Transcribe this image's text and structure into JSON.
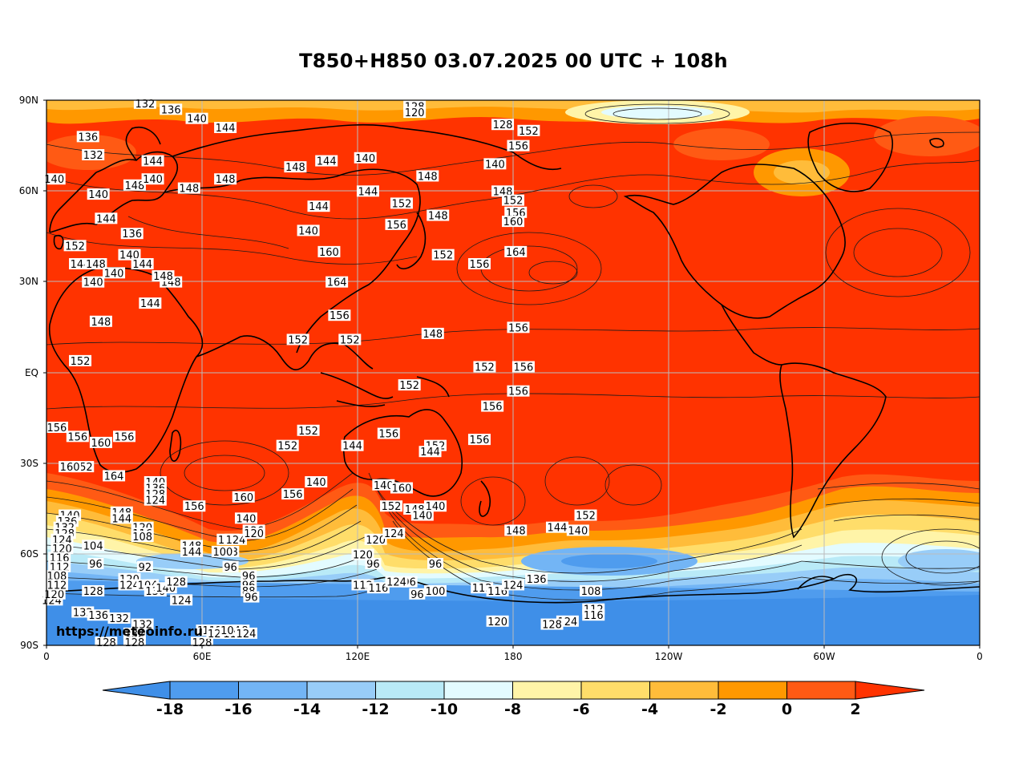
{
  "title": "T850+H850 03.07.2025 00 UTC + 108h",
  "credit": "https://meteoinfo.ru",
  "y_axis_ticks": [
    "90N",
    "60N",
    "30N",
    "EQ",
    "30S",
    "60S",
    "90S"
  ],
  "x_axis_ticks": [
    "0",
    "60E",
    "120E",
    "180",
    "120W",
    "60W",
    "0"
  ],
  "colorbar": {
    "ticks": [
      "-18",
      "-16",
      "-14",
      "-12",
      "-10",
      "-8",
      "-6",
      "-4",
      "-2",
      "0",
      "2"
    ],
    "colors": [
      "#3f8fe8",
      "#4f9cee",
      "#73b5f5",
      "#98cdf8",
      "#b9eaf7",
      "#e3fbff",
      "#fff4a8",
      "#ffdd6a",
      "#ffbc3a",
      "#ff9800",
      "#ff5a14",
      "#ff3300"
    ]
  },
  "chart_data": {
    "type": "heatmap",
    "variable_note": "T850 filled, H850 contours",
    "contour_labels": [
      {
        "text": "132",
        "lon": 38,
        "lat": 89
      },
      {
        "text": "136",
        "lon": 48,
        "lat": 87
      },
      {
        "text": "140",
        "lon": 58,
        "lat": 84
      },
      {
        "text": "144",
        "lon": 69,
        "lat": 81
      },
      {
        "text": "136",
        "lon": 16,
        "lat": 78
      },
      {
        "text": "132",
        "lon": 18,
        "lat": 72
      },
      {
        "text": "140",
        "lon": 3,
        "lat": 64
      },
      {
        "text": "140",
        "lon": 20,
        "lat": 59
      },
      {
        "text": "148",
        "lon": 34,
        "lat": 62
      },
      {
        "text": "144",
        "lon": 41,
        "lat": 70
      },
      {
        "text": "140",
        "lon": 41,
        "lat": 64
      },
      {
        "text": "148",
        "lon": 55,
        "lat": 61
      },
      {
        "text": "148",
        "lon": 69,
        "lat": 64
      },
      {
        "text": "144",
        "lon": 23,
        "lat": 51
      },
      {
        "text": "136",
        "lon": 33,
        "lat": 46
      },
      {
        "text": "140",
        "lon": 32,
        "lat": 39
      },
      {
        "text": "144",
        "lon": 37,
        "lat": 36
      },
      {
        "text": "152",
        "lon": 11,
        "lat": 42
      },
      {
        "text": "144",
        "lon": 13,
        "lat": 36
      },
      {
        "text": "148",
        "lon": 19,
        "lat": 36
      },
      {
        "text": "140",
        "lon": 26,
        "lat": 33
      },
      {
        "text": "140",
        "lon": 18,
        "lat": 30
      },
      {
        "text": "148",
        "lon": 21,
        "lat": 17
      },
      {
        "text": "152",
        "lon": 13,
        "lat": 4
      },
      {
        "text": "144",
        "lon": 40,
        "lat": 23
      },
      {
        "text": "148",
        "lon": 48,
        "lat": 30
      },
      {
        "text": "148",
        "lon": 45,
        "lat": 32
      },
      {
        "text": "144",
        "lon": 108,
        "lat": 70
      },
      {
        "text": "148",
        "lon": 96,
        "lat": 68
      },
      {
        "text": "144",
        "lon": 105,
        "lat": 55
      },
      {
        "text": "140",
        "lon": 101,
        "lat": 47
      },
      {
        "text": "160",
        "lon": 109,
        "lat": 40
      },
      {
        "text": "164",
        "lon": 112,
        "lat": 30
      },
      {
        "text": "156",
        "lon": 113,
        "lat": 19
      },
      {
        "text": "152",
        "lon": 97,
        "lat": 11
      },
      {
        "text": "152",
        "lon": 117,
        "lat": 11
      },
      {
        "text": "140",
        "lon": 123,
        "lat": 71
      },
      {
        "text": "144",
        "lon": 124,
        "lat": 60
      },
      {
        "text": "152",
        "lon": 137,
        "lat": 56
      },
      {
        "text": "156",
        "lon": 135,
        "lat": 49
      },
      {
        "text": "128",
        "lon": 142,
        "lat": 88
      },
      {
        "text": "120",
        "lon": 142,
        "lat": 86
      },
      {
        "text": "148",
        "lon": 147,
        "lat": 65
      },
      {
        "text": "148",
        "lon": 151,
        "lat": 52
      },
      {
        "text": "152",
        "lon": 153,
        "lat": 39
      },
      {
        "text": "156",
        "lon": 167,
        "lat": 36
      },
      {
        "text": "148",
        "lon": 149,
        "lat": 13
      },
      {
        "text": "152",
        "lon": 140,
        "lat": -4
      },
      {
        "text": "152",
        "lon": 169,
        "lat": 2
      },
      {
        "text": "156",
        "lon": 172,
        "lat": -11
      },
      {
        "text": "152",
        "lon": 150,
        "lat": -24
      },
      {
        "text": "140",
        "lon": 173,
        "lat": 69
      },
      {
        "text": "148",
        "lon": 176,
        "lat": 60
      },
      {
        "text": "152",
        "lon": 180,
        "lat": 57
      },
      {
        "text": "156",
        "lon": 181,
        "lat": 53
      },
      {
        "text": "160",
        "lon": 180,
        "lat": 50
      },
      {
        "text": "164",
        "lon": 181,
        "lat": 40
      },
      {
        "text": "128",
        "lon": 176,
        "lat": 82
      },
      {
        "text": "152",
        "lon": 186,
        "lat": 80
      },
      {
        "text": "156",
        "lon": 182,
        "lat": 75
      },
      {
        "text": "156",
        "lon": 182,
        "lat": 15
      },
      {
        "text": "156",
        "lon": 184,
        "lat": 2
      },
      {
        "text": "156",
        "lon": 182,
        "lat": -6
      },
      {
        "text": "156",
        "lon": 167,
        "lat": -22
      },
      {
        "text": "140",
        "lon": 130,
        "lat": -37
      },
      {
        "text": "160",
        "lon": 137,
        "lat": -38
      },
      {
        "text": "144",
        "lon": 118,
        "lat": -24
      },
      {
        "text": "156",
        "lon": 132,
        "lat": -20
      },
      {
        "text": "160",
        "lon": 21,
        "lat": -23
      },
      {
        "text": "156",
        "lon": 30,
        "lat": -21
      },
      {
        "text": "164",
        "lon": 26,
        "lat": -34
      },
      {
        "text": "152",
        "lon": 14,
        "lat": -31
      },
      {
        "text": "160",
        "lon": 9,
        "lat": -31
      },
      {
        "text": "156",
        "lon": 4,
        "lat": -18
      },
      {
        "text": "156",
        "lon": 12,
        "lat": -21
      },
      {
        "text": "152",
        "lon": 101,
        "lat": -19
      },
      {
        "text": "152",
        "lon": 93,
        "lat": -24
      },
      {
        "text": "140",
        "lon": 104,
        "lat": -36
      },
      {
        "text": "148",
        "lon": 142,
        "lat": -45
      },
      {
        "text": "152",
        "lon": 133,
        "lat": -44
      },
      {
        "text": "140",
        "lon": 145,
        "lat": -47
      },
      {
        "text": "120",
        "lon": 127,
        "lat": -55
      },
      {
        "text": "124",
        "lon": 134,
        "lat": -53
      },
      {
        "text": "96",
        "lon": 126,
        "lat": -63
      },
      {
        "text": "96",
        "lon": 140,
        "lat": -69
      },
      {
        "text": "96",
        "lon": 143,
        "lat": -73
      },
      {
        "text": "96",
        "lon": 150,
        "lat": -63
      },
      {
        "text": "100",
        "lon": 150,
        "lat": -72
      },
      {
        "text": "112",
        "lon": 168,
        "lat": -71
      },
      {
        "text": "116",
        "lon": 174,
        "lat": -72
      },
      {
        "text": "124",
        "lon": 180,
        "lat": -70
      },
      {
        "text": "136",
        "lon": 189,
        "lat": -68
      },
      {
        "text": "148",
        "lon": 181,
        "lat": -52
      },
      {
        "text": "144",
        "lon": 197,
        "lat": -51
      },
      {
        "text": "140",
        "lon": 205,
        "lat": -52
      },
      {
        "text": "152",
        "lon": 208,
        "lat": -47
      },
      {
        "text": "108",
        "lon": 210,
        "lat": -72
      },
      {
        "text": "112",
        "lon": 211,
        "lat": -78
      },
      {
        "text": "116",
        "lon": 211,
        "lat": -80
      },
      {
        "text": "124",
        "lon": 201,
        "lat": -82
      },
      {
        "text": "128",
        "lon": 195,
        "lat": -83
      },
      {
        "text": "120",
        "lon": 174,
        "lat": -82
      },
      {
        "text": "140",
        "lon": 9,
        "lat": -47
      },
      {
        "text": "136",
        "lon": 8,
        "lat": -49
      },
      {
        "text": "132",
        "lon": 7,
        "lat": -51
      },
      {
        "text": "128",
        "lon": 7,
        "lat": -53
      },
      {
        "text": "124",
        "lon": 6,
        "lat": -55
      },
      {
        "text": "120",
        "lon": 6,
        "lat": -58
      },
      {
        "text": "116",
        "lon": 5,
        "lat": -61
      },
      {
        "text": "112",
        "lon": 5,
        "lat": -64
      },
      {
        "text": "108",
        "lon": 4,
        "lat": -67
      },
      {
        "text": "124",
        "lon": 2,
        "lat": -75
      },
      {
        "text": "120",
        "lon": 3,
        "lat": -73
      },
      {
        "text": "112",
        "lon": 4,
        "lat": -70
      },
      {
        "text": "104",
        "lon": 18,
        "lat": -57
      },
      {
        "text": "96",
        "lon": 19,
        "lat": -63
      },
      {
        "text": "128",
        "lon": 18,
        "lat": -72
      },
      {
        "text": "132",
        "lon": 14,
        "lat": -79
      },
      {
        "text": "136",
        "lon": 20,
        "lat": -80
      },
      {
        "text": "128",
        "lon": 23,
        "lat": -89
      },
      {
        "text": "132",
        "lon": 28,
        "lat": -81
      },
      {
        "text": "132",
        "lon": 34,
        "lat": -86
      },
      {
        "text": "132",
        "lon": 37,
        "lat": -83
      },
      {
        "text": "128",
        "lon": 34,
        "lat": -89
      },
      {
        "text": "148",
        "lon": 29,
        "lat": -46
      },
      {
        "text": "144",
        "lon": 29,
        "lat": -48
      },
      {
        "text": "120",
        "lon": 37,
        "lat": -51
      },
      {
        "text": "116",
        "lon": 37,
        "lat": -53
      },
      {
        "text": "108",
        "lon": 37,
        "lat": -54
      },
      {
        "text": "92",
        "lon": 38,
        "lat": -64
      },
      {
        "text": "120",
        "lon": 32,
        "lat": -68
      },
      {
        "text": "124",
        "lon": 32,
        "lat": -70
      },
      {
        "text": "104",
        "lon": 39,
        "lat": -70
      },
      {
        "text": "136",
        "lon": 42,
        "lat": -72
      },
      {
        "text": "140",
        "lon": 46,
        "lat": -71
      },
      {
        "text": "140",
        "lon": 42,
        "lat": -36
      },
      {
        "text": "136",
        "lon": 42,
        "lat": -38
      },
      {
        "text": "128",
        "lon": 42,
        "lat": -40
      },
      {
        "text": "124",
        "lon": 42,
        "lat": -42
      },
      {
        "text": "128",
        "lon": 50,
        "lat": -69
      },
      {
        "text": "124",
        "lon": 52,
        "lat": -75
      },
      {
        "text": "148",
        "lon": 56,
        "lat": -57
      },
      {
        "text": "144",
        "lon": 56,
        "lat": -59
      },
      {
        "text": "156",
        "lon": 57,
        "lat": -44
      },
      {
        "text": "128",
        "lon": 60,
        "lat": -89
      },
      {
        "text": "116",
        "lon": 62,
        "lat": -85
      },
      {
        "text": "112",
        "lon": 64,
        "lat": -85
      },
      {
        "text": "120",
        "lon": 66,
        "lat": -86
      },
      {
        "text": "116",
        "lon": 72,
        "lat": -86
      },
      {
        "text": "108",
        "lon": 74,
        "lat": -85
      },
      {
        "text": "104",
        "lon": 71,
        "lat": -85
      },
      {
        "text": "124",
        "lon": 77,
        "lat": -86
      },
      {
        "text": "120",
        "lon": 70,
        "lat": -55
      },
      {
        "text": "108",
        "lon": 70,
        "lat": -59
      },
      {
        "text": "100",
        "lon": 68,
        "lat": -59
      },
      {
        "text": "96",
        "lon": 71,
        "lat": -64
      },
      {
        "text": "124",
        "lon": 73,
        "lat": -55
      },
      {
        "text": "96",
        "lon": 78,
        "lat": -67
      },
      {
        "text": "96",
        "lon": 78,
        "lat": -70
      },
      {
        "text": "88",
        "lon": 78,
        "lat": -72
      },
      {
        "text": "96",
        "lon": 79,
        "lat": -74
      },
      {
        "text": "126",
        "lon": 80,
        "lat": -52
      },
      {
        "text": "120",
        "lon": 80,
        "lat": -53
      },
      {
        "text": "140",
        "lon": 77,
        "lat": -48
      },
      {
        "text": "156",
        "lon": 95,
        "lat": -40
      },
      {
        "text": "160",
        "lon": 76,
        "lat": -41
      },
      {
        "text": "144",
        "lon": 148,
        "lat": -26
      },
      {
        "text": "140",
        "lon": 150,
        "lat": -44
      },
      {
        "text": "120",
        "lon": 122,
        "lat": -60
      },
      {
        "text": "112",
        "lon": 122,
        "lat": -70
      },
      {
        "text": "116",
        "lon": 128,
        "lat": -71
      },
      {
        "text": "124",
        "lon": 135,
        "lat": -69
      }
    ]
  }
}
